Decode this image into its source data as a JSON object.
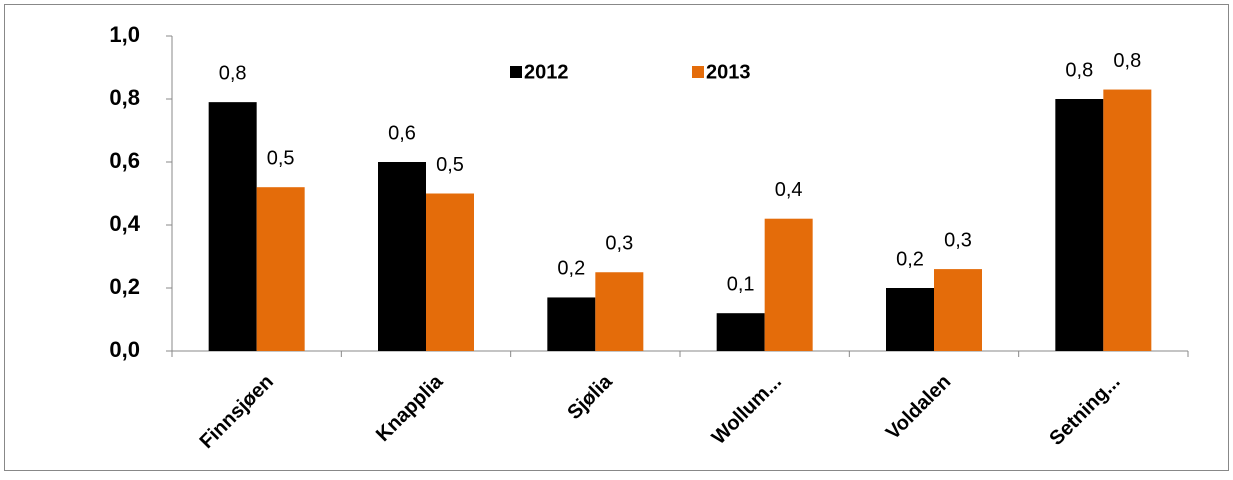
{
  "chart_data": {
    "type": "bar",
    "categories": [
      "Finnsjøen",
      "Knapplia",
      "Sjølia",
      "Wollum...",
      "Voldalen",
      "Setning..."
    ],
    "series": [
      {
        "name": "2012",
        "color": "#000000",
        "values": [
          0.79,
          0.6,
          0.17,
          0.12,
          0.2,
          0.8
        ],
        "value_labels": [
          "0,8",
          "0,6",
          "0,2",
          "0,1",
          "0,2",
          "0,8"
        ]
      },
      {
        "name": "2013",
        "color": "#e46c0a",
        "values": [
          0.52,
          0.5,
          0.25,
          0.42,
          0.26,
          0.83
        ],
        "value_labels": [
          "0,5",
          "0,5",
          "0,3",
          "0,4",
          "0,3",
          "0,8"
        ]
      }
    ],
    "ylim": [
      0,
      1
    ],
    "yticks": [
      {
        "value": 0,
        "label": "0,0"
      },
      {
        "value": 0.2,
        "label": "0,2"
      },
      {
        "value": 0.4,
        "label": "0,4"
      },
      {
        "value": 0.6,
        "label": "0,6"
      },
      {
        "value": 0.8,
        "label": "0,8"
      },
      {
        "value": 1,
        "label": "1,0"
      }
    ],
    "grid": false,
    "legend": "top"
  }
}
